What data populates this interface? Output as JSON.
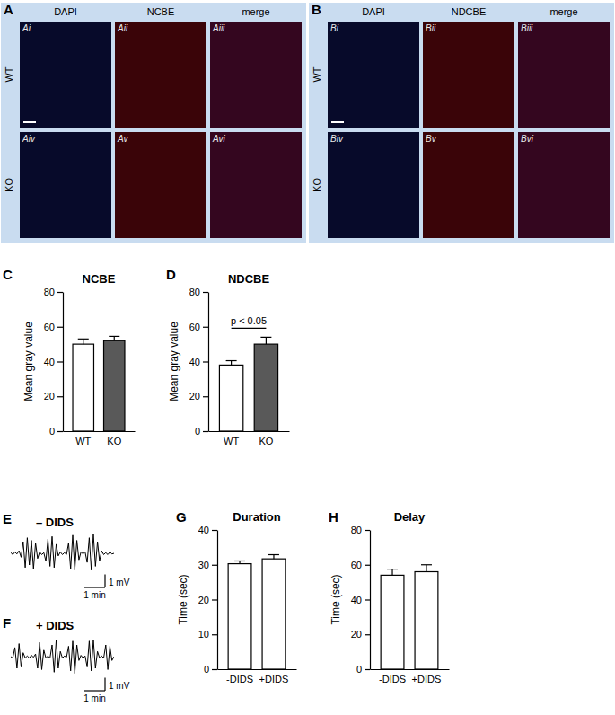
{
  "image_panels": [
    {
      "letter": "A",
      "columns": [
        "DAPI",
        "NCBE",
        "merge"
      ],
      "rows": [
        "WT",
        "KO"
      ],
      "sublabels": [
        [
          "Ai",
          "Aii",
          "Aiii"
        ],
        [
          "Aiv",
          "Av",
          "Avi"
        ]
      ]
    },
    {
      "letter": "B",
      "columns": [
        "DAPI",
        "NDCBE",
        "merge"
      ],
      "rows": [
        "WT",
        "KO"
      ],
      "sublabels": [
        [
          "Bi",
          "Bii",
          "Biii"
        ],
        [
          "Biv",
          "Bv",
          "Bvi"
        ]
      ]
    }
  ],
  "chart_data": [
    {
      "panel": "C",
      "type": "bar",
      "title": "NCBE",
      "y_label": "Mean gray value",
      "categories": [
        "WT",
        "KO"
      ],
      "values": [
        50,
        52
      ],
      "errors": [
        3,
        2.5
      ],
      "colors": [
        "#ffffff",
        "#595959"
      ],
      "ylim": [
        0,
        80
      ],
      "yticks": [
        0,
        20,
        40,
        60,
        80
      ]
    },
    {
      "panel": "D",
      "type": "bar",
      "title": "NDCBE",
      "y_label": "Mean gray value",
      "categories": [
        "WT",
        "KO"
      ],
      "values": [
        38,
        50
      ],
      "errors": [
        2.5,
        4
      ],
      "colors": [
        "#ffffff",
        "#595959"
      ],
      "ylim": [
        0,
        80
      ],
      "yticks": [
        0,
        20,
        40,
        60,
        80
      ],
      "annotation": "p < 0.05"
    },
    {
      "panel": "E",
      "type": "line",
      "title": "– DIDS",
      "tick_labels": false,
      "color": "#000000",
      "x": [
        0,
        0.1,
        0.2,
        0.3,
        0.4,
        0.5,
        0.6,
        0.7,
        0.8,
        0.9,
        1.0,
        1.1,
        1.2,
        1.3,
        1.4,
        1.5,
        1.6,
        1.7,
        1.8,
        1.9,
        2.0,
        2.1,
        2.2,
        2.3,
        2.4,
        2.5,
        2.6,
        2.7,
        2.8,
        2.9,
        3.0,
        3.1,
        3.2,
        3.3,
        3.4,
        3.5,
        3.6,
        3.7,
        3.8,
        3.9,
        4.0,
        4.1,
        4.2,
        4.3,
        4.4,
        4.5,
        4.6,
        4.7,
        4.8,
        4.9,
        5.0
      ],
      "values": [
        0.05,
        -0.1,
        0.1,
        -0.05,
        0.2,
        -0.3,
        0.9,
        -1.1,
        1.2,
        -0.9,
        1.0,
        -1.2,
        0.8,
        -0.4,
        0.1,
        -0.1,
        0.05,
        -0.6,
        1.1,
        -1.0,
        1.3,
        -1.1,
        0.7,
        -0.2,
        0.1,
        -0.1,
        0.05,
        -0.1,
        0.8,
        -1.2,
        1.4,
        -1.3,
        1.0,
        -0.5,
        0.1,
        -0.05,
        0.1,
        -0.7,
        1.2,
        -1.3,
        1.5,
        -1.0,
        0.9,
        -0.6,
        0.2,
        -0.1,
        0.05,
        -0.1,
        0.1,
        -0.05,
        0.0
      ],
      "xlim": [
        0,
        5
      ],
      "ylim": [
        -1.8,
        1.8
      ],
      "scale_bar": {
        "x_value": 1,
        "x_label": "1 min",
        "y_value": 1,
        "y_label": "1 mV"
      }
    },
    {
      "panel": "F",
      "type": "line",
      "title": "+ DIDS",
      "tick_labels": false,
      "color": "#000000",
      "x": [
        0,
        0.1,
        0.2,
        0.3,
        0.4,
        0.5,
        0.6,
        0.7,
        0.8,
        0.9,
        1.0,
        1.1,
        1.2,
        1.3,
        1.4,
        1.5,
        1.6,
        1.7,
        1.8,
        1.9,
        2.0,
        2.1,
        2.2,
        2.3,
        2.4,
        2.5,
        2.6,
        2.7,
        2.8,
        2.9,
        3.0,
        3.1,
        3.2,
        3.3,
        3.4,
        3.5,
        3.6,
        3.7,
        3.8,
        3.9,
        4.0,
        4.1,
        4.2,
        4.3,
        4.4,
        4.5,
        4.6,
        4.7,
        4.8,
        4.9,
        5.0
      ],
      "values": [
        0.0,
        -0.1,
        0.7,
        -0.9,
        1.0,
        -0.8,
        0.3,
        -0.1,
        0.05,
        -0.1,
        0.1,
        -0.05,
        0.2,
        -0.9,
        1.1,
        -1.0,
        0.5,
        -0.1,
        0.05,
        -0.1,
        0.9,
        -1.2,
        1.3,
        -0.9,
        0.4,
        -0.1,
        0.05,
        -0.05,
        0.8,
        -1.1,
        1.2,
        -1.3,
        0.9,
        -0.3,
        0.1,
        -0.1,
        0.05,
        -0.8,
        1.2,
        -1.1,
        1.3,
        -0.9,
        0.4,
        -0.1,
        0.05,
        -0.1,
        0.9,
        -1.0,
        0.8,
        -0.3,
        0.0
      ],
      "xlim": [
        0,
        5
      ],
      "ylim": [
        -1.8,
        1.8
      ],
      "scale_bar": {
        "x_value": 1,
        "x_label": "1 min",
        "y_value": 1,
        "y_label": "1 mV"
      }
    },
    {
      "panel": "G",
      "type": "bar",
      "title": "Duration",
      "y_label": "Time (sec)",
      "categories": [
        "-DIDS",
        "+DIDS"
      ],
      "values": [
        30.3,
        31.7
      ],
      "errors": [
        0.8,
        1.2
      ],
      "colors": [
        "#ffffff",
        "#ffffff"
      ],
      "ylim": [
        0,
        40
      ],
      "yticks": [
        0,
        10,
        20,
        30,
        40
      ]
    },
    {
      "panel": "H",
      "type": "bar",
      "title": "Delay",
      "y_label": "Time (sec)",
      "categories": [
        "-DIDS",
        "+DIDS"
      ],
      "values": [
        54,
        56
      ],
      "errors": [
        3.5,
        4
      ],
      "colors": [
        "#ffffff",
        "#ffffff"
      ],
      "ylim": [
        0,
        80
      ],
      "yticks": [
        0,
        20,
        40,
        60,
        80
      ]
    }
  ]
}
